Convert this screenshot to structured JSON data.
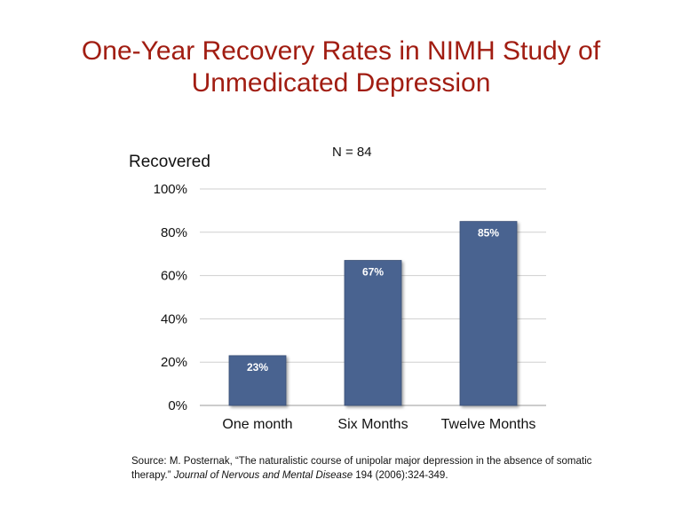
{
  "title": {
    "line1": "One-Year Recovery Rates in NIMH Study of",
    "line2": "Unmedicated Depression"
  },
  "chart_data": {
    "type": "bar",
    "title": "One-Year Recovery Rates in NIMH Study of Unmedicated Depression",
    "ylabel": "Recovered",
    "xlabel": "",
    "annotation": "N =  84",
    "categories": [
      "One month",
      "Six Months",
      "Twelve Months"
    ],
    "values": [
      23,
      67,
      85
    ],
    "data_labels": [
      "23%",
      "67%",
      "85%"
    ],
    "ylim": [
      0,
      100
    ],
    "yticks": [
      0,
      20,
      40,
      60,
      80,
      100
    ],
    "ytick_labels": [
      "0%",
      "20%",
      "40%",
      "60%",
      "80%",
      "100%"
    ],
    "grid": true,
    "bar_color": "#4a6390"
  },
  "source": {
    "prefix": "Source: M. Posternak, “The naturalistic course of unipolar major depression in the absence of somatic therapy.” ",
    "journal": "Journal of Nervous and Mental Disease",
    "suffix": " 194 (2006):324-349."
  }
}
